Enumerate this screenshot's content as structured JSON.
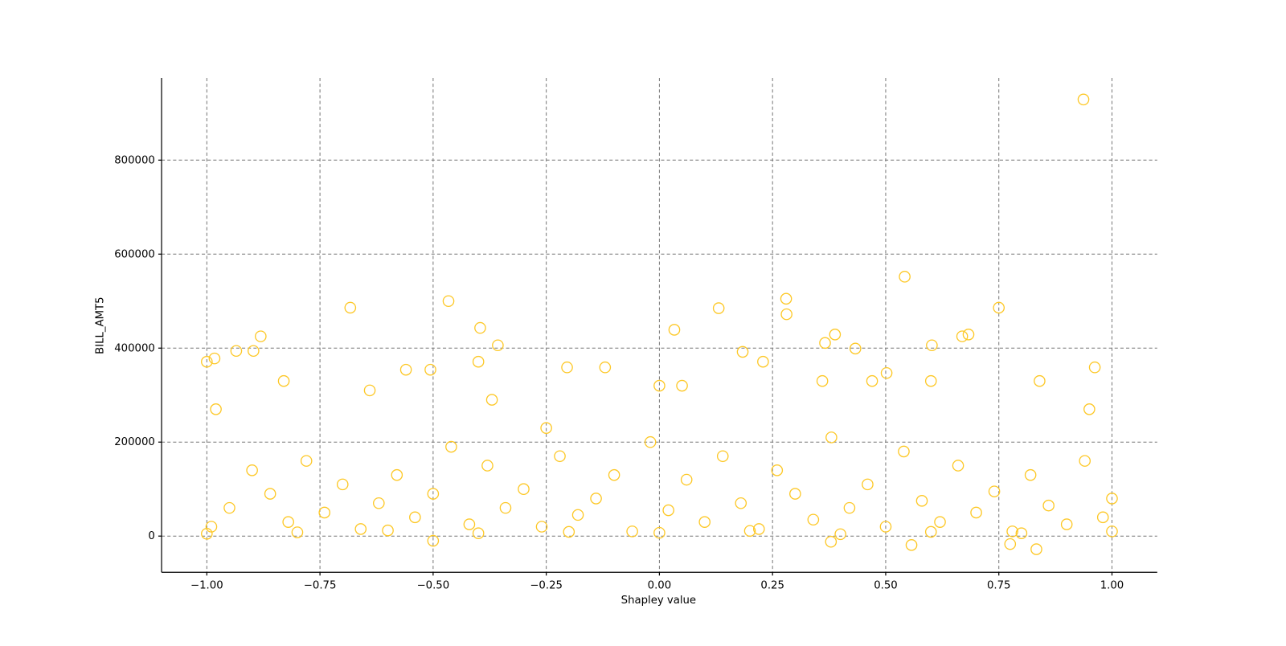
{
  "chart_data": {
    "type": "scatter",
    "xlabel": "Shapley value",
    "ylabel": "BILL_AMT5",
    "color": "#fdc827",
    "grid": true,
    "xlim": [
      -1.1,
      1.1
    ],
    "ylim": [
      -77000,
      975000
    ],
    "xticks": [
      {
        "value": -1.0,
        "label": "−1.00"
      },
      {
        "value": -0.75,
        "label": "−0.75"
      },
      {
        "value": -0.5,
        "label": "−0.50"
      },
      {
        "value": -0.25,
        "label": "−0.25"
      },
      {
        "value": 0.0,
        "label": "0.00"
      },
      {
        "value": 0.25,
        "label": "0.25"
      },
      {
        "value": 0.5,
        "label": "0.50"
      },
      {
        "value": 0.75,
        "label": "0.75"
      },
      {
        "value": 1.0,
        "label": "1.00"
      }
    ],
    "yticks": [
      0,
      200000,
      400000,
      600000,
      800000
    ],
    "x": [
      0.937,
      0.542,
      -0.466,
      -0.683,
      0.131,
      0.28,
      0.281,
      0.75,
      -0.396,
      0.033,
      -0.357,
      0.366,
      0.388,
      -0.881,
      0.433,
      0.669,
      0.683,
      0.962,
      -1.0,
      -0.983,
      -0.935,
      -0.897,
      -0.56,
      -0.506,
      -0.4,
      0.602,
      0.184,
      0.229,
      -0.204,
      -0.12,
      0.502,
      0.557,
      0.833,
      0.775,
      0.379,
      -0.5,
      -0.99,
      -0.95,
      -0.9,
      -0.86,
      -0.82,
      -0.78,
      -0.74,
      -0.7,
      -0.66,
      -0.62,
      -0.58,
      -0.54,
      -0.5,
      -0.46,
      -0.42,
      -0.38,
      -0.34,
      -0.3,
      -0.26,
      -0.22,
      -0.18,
      -0.14,
      -0.1,
      -0.06,
      -0.02,
      0.02,
      0.06,
      0.1,
      0.14,
      0.18,
      0.22,
      0.26,
      0.3,
      0.34,
      0.38,
      0.42,
      0.46,
      0.5,
      0.54,
      0.58,
      0.62,
      0.66,
      0.7,
      0.74,
      0.78,
      0.82,
      0.86,
      0.9,
      0.94,
      0.98,
      1.0,
      -1.0,
      -0.8,
      -0.6,
      -0.4,
      -0.2,
      0.0,
      0.2,
      0.4,
      0.6,
      0.8,
      1.0,
      -0.98,
      -0.83,
      -0.64,
      -0.37,
      -0.25,
      0.0,
      0.05,
      0.36,
      0.47,
      0.6,
      0.84,
      0.95
    ],
    "values": [
      929000,
      552000,
      500000,
      486000,
      485000,
      505000,
      472000,
      486000,
      443000,
      439000,
      406000,
      411000,
      429000,
      425000,
      399000,
      425000,
      429000,
      359000,
      371000,
      378000,
      394000,
      394000,
      354000,
      354000,
      371000,
      406000,
      392000,
      371000,
      359000,
      359000,
      347000,
      -19000,
      -28000,
      -17000,
      -12000,
      -10000,
      20000,
      60000,
      140000,
      90000,
      30000,
      160000,
      50000,
      110000,
      15000,
      70000,
      130000,
      40000,
      90000,
      190000,
      25000,
      150000,
      60000,
      100000,
      20000,
      170000,
      45000,
      80000,
      130000,
      10000,
      200000,
      55000,
      120000,
      30000,
      170000,
      70000,
      15000,
      140000,
      90000,
      35000,
      210000,
      60000,
      110000,
      20000,
      180000,
      75000,
      30000,
      150000,
      50000,
      95000,
      10000,
      130000,
      65000,
      25000,
      160000,
      40000,
      80000,
      5000,
      8000,
      12000,
      6000,
      9000,
      7000,
      11000,
      4000,
      9000,
      6000,
      10000,
      270000,
      330000,
      310000,
      290000,
      230000,
      320000,
      320000,
      330000,
      330000,
      330000,
      330000,
      270000
    ]
  }
}
